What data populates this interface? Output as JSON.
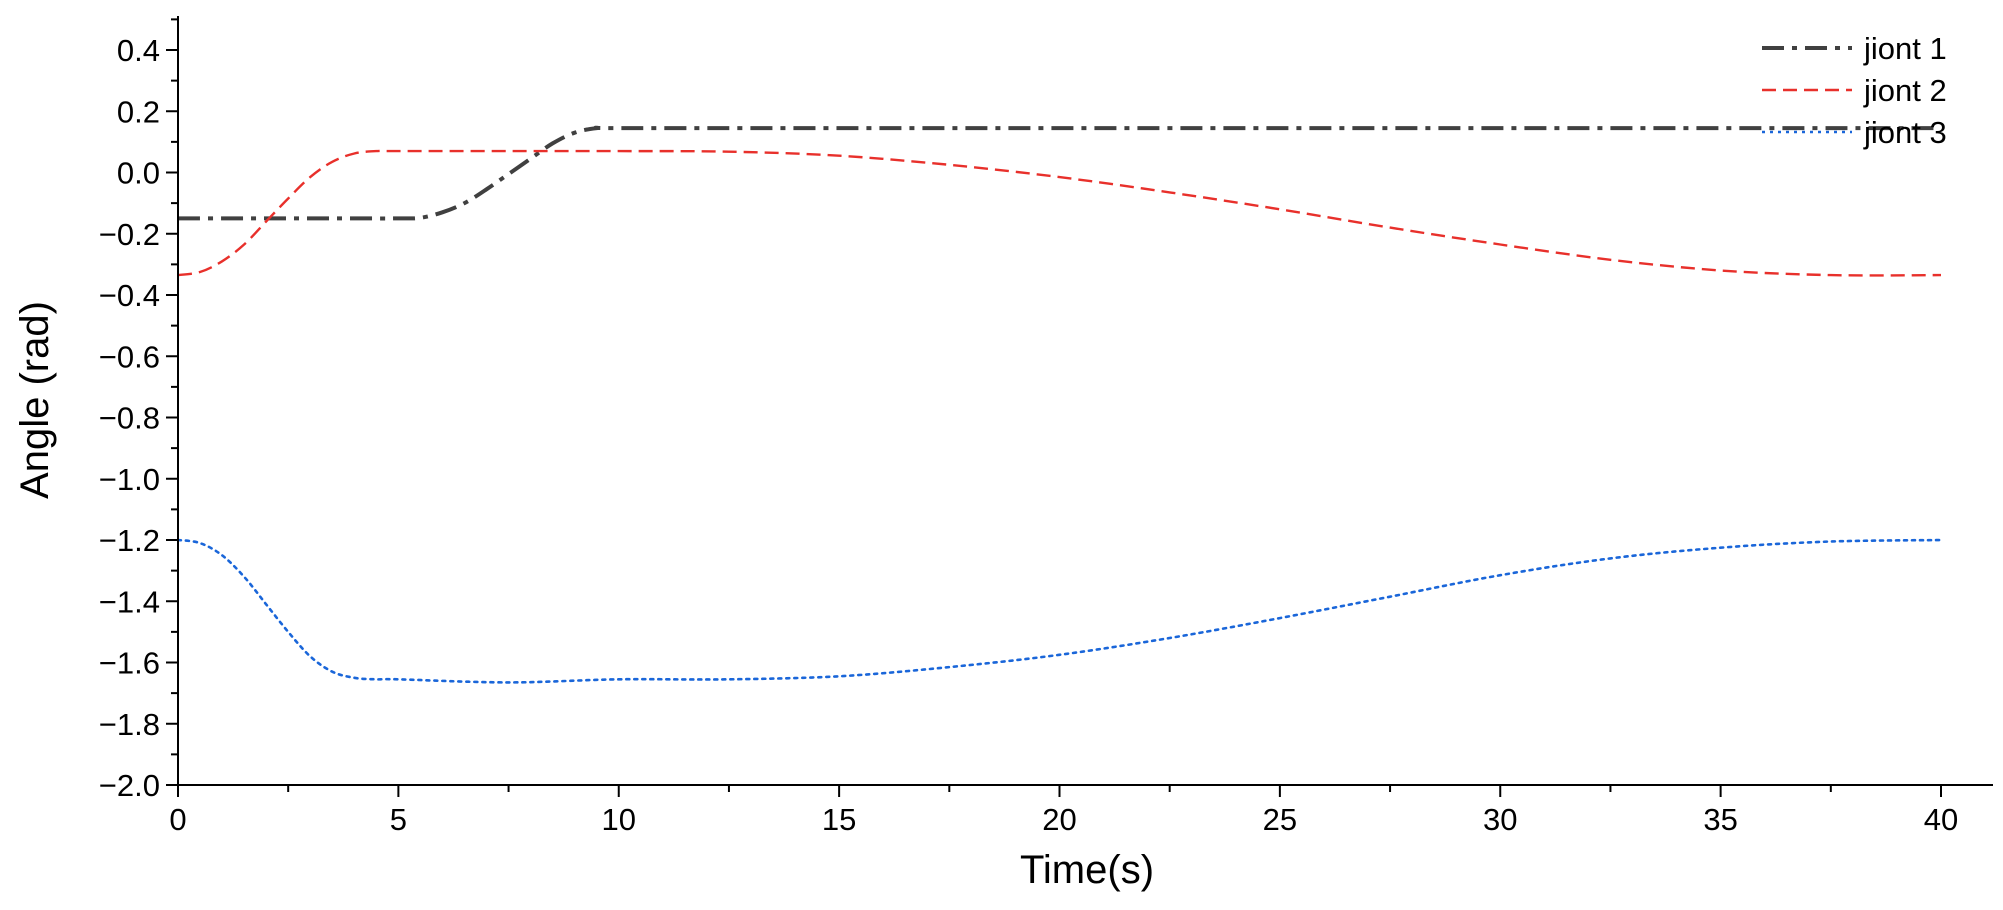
{
  "chart_data": {
    "type": "line",
    "title": "",
    "xlabel": "Time(s)",
    "ylabel": "Angle (rad)",
    "xlim": [
      0,
      41
    ],
    "ylim": [
      -2.0,
      0.5
    ],
    "xticks": [
      "0",
      "5",
      "10",
      "15",
      "20",
      "25",
      "30",
      "35",
      "40"
    ],
    "yticks": [
      "0.4",
      "0.2",
      "0.0",
      "−0.2",
      "−0.4",
      "−0.6",
      "−0.8",
      "−1.0",
      "−1.2",
      "−1.4",
      "−1.6",
      "−1.8",
      "−2.0"
    ],
    "legend_position": "top-right",
    "grid": false,
    "series": [
      {
        "name": "jiont 1",
        "color": "#404040",
        "style": "dash-dot",
        "x": [
          0,
          1,
          2,
          3,
          4,
          5,
          5.5,
          6,
          6.5,
          7,
          7.5,
          8,
          8.5,
          9,
          9.5,
          10,
          15,
          20,
          25,
          30,
          35,
          40
        ],
        "y": [
          -0.15,
          -0.15,
          -0.15,
          -0.15,
          -0.15,
          -0.15,
          -0.148,
          -0.13,
          -0.1,
          -0.055,
          -0.005,
          0.045,
          0.095,
          0.13,
          0.145,
          0.145,
          0.145,
          0.145,
          0.145,
          0.145,
          0.145,
          0.145
        ]
      },
      {
        "name": "jiont 2",
        "color": "#e8302b",
        "style": "dash",
        "x": [
          0,
          0.5,
          1,
          1.5,
          2,
          2.5,
          3,
          3.5,
          4,
          4.5,
          5,
          7.5,
          10,
          12.5,
          15,
          17.5,
          20,
          22.5,
          25,
          27.5,
          30,
          32.5,
          35,
          37.5,
          40
        ],
        "y": [
          -0.335,
          -0.325,
          -0.29,
          -0.235,
          -0.16,
          -0.085,
          -0.015,
          0.035,
          0.062,
          0.07,
          0.07,
          0.07,
          0.07,
          0.068,
          0.055,
          0.025,
          -0.015,
          -0.065,
          -0.12,
          -0.18,
          -0.235,
          -0.285,
          -0.32,
          -0.335,
          -0.335
        ]
      },
      {
        "name": "jiont 3",
        "color": "#1a66d9",
        "style": "dot",
        "x": [
          0,
          0.5,
          1,
          1.5,
          2,
          2.5,
          3,
          3.5,
          4,
          4.5,
          5,
          7.5,
          10,
          12.5,
          15,
          17.5,
          20,
          22.5,
          25,
          27.5,
          30,
          32.5,
          35,
          37.5,
          40
        ],
        "y": [
          -1.2,
          -1.21,
          -1.25,
          -1.32,
          -1.41,
          -1.5,
          -1.58,
          -1.63,
          -1.65,
          -1.655,
          -1.655,
          -1.665,
          -1.655,
          -1.655,
          -1.645,
          -1.615,
          -1.575,
          -1.52,
          -1.455,
          -1.385,
          -1.315,
          -1.26,
          -1.225,
          -1.205,
          -1.2
        ]
      }
    ]
  }
}
